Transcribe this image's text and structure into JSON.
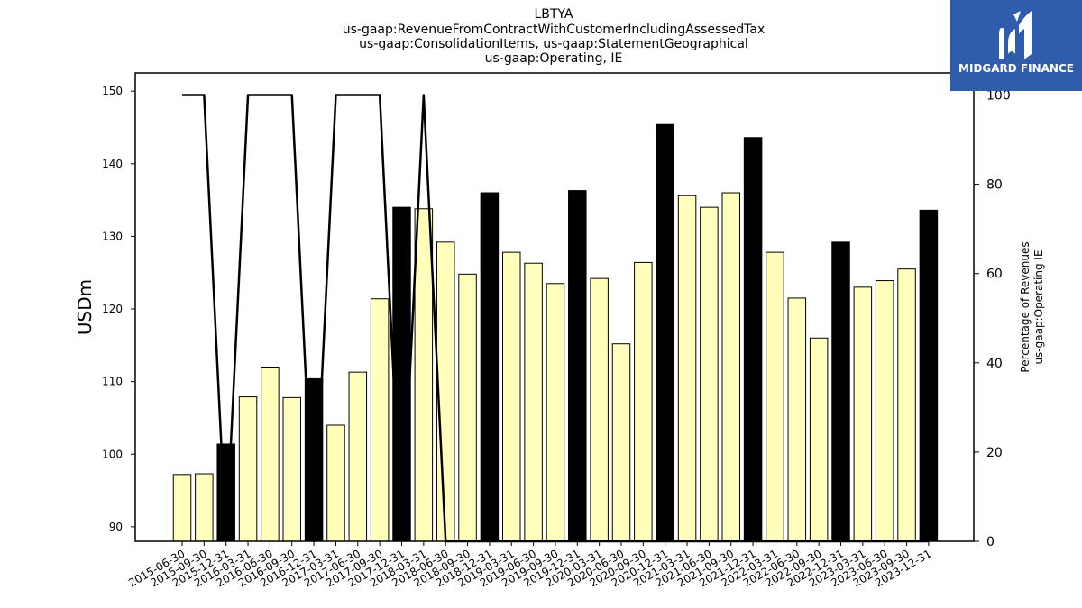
{
  "chart_data": {
    "type": "bar",
    "title_lines": [
      "LBTYA",
      "us-gaap:RevenueFromContractWithCustomerIncludingAssessedTax",
      "us-gaap:ConsolidationItems, us-gaap:StatementGeographical",
      "us-gaap:Operating, IE"
    ],
    "ylabel": "USDm",
    "y2label_lines": [
      "Percentage of Revenues",
      "us-gaap:Operating IE"
    ],
    "ylim": [
      88,
      152.5
    ],
    "y2lim": [
      0,
      100
    ],
    "yticks": [
      90,
      100,
      110,
      120,
      130,
      140,
      150
    ],
    "y2ticks": [
      0,
      20,
      40,
      60,
      80,
      100
    ],
    "categories": [
      "2015-06-30",
      "2015-09-30",
      "2015-12-31",
      "2016-03-31",
      "2016-06-30",
      "2016-09-30",
      "2016-12-31",
      "2017-03-31",
      "2017-06-30",
      "2017-09-30",
      "2017-12-31",
      "2018-03-31",
      "2018-06-30",
      "2018-09-30",
      "2018-12-31",
      "2019-03-31",
      "2019-06-30",
      "2019-09-30",
      "2019-12-31",
      "2020-03-31",
      "2020-06-30",
      "2020-09-30",
      "2020-12-31",
      "2021-03-31",
      "2021-06-30",
      "2021-09-30",
      "2021-12-31",
      "2022-03-31",
      "2022-06-30",
      "2022-09-30",
      "2022-12-31",
      "2023-03-31",
      "2023-06-30",
      "2023-09-30",
      "2023-12-31"
    ],
    "series": [
      {
        "values": [
          97.2,
          97.3,
          101.4,
          107.9,
          112.0,
          107.8,
          110.4,
          104.0,
          111.3,
          121.4,
          134.0,
          133.8,
          129.2,
          124.8,
          136.0,
          127.8,
          126.3,
          123.5,
          136.3,
          124.2,
          115.2,
          126.4,
          145.4,
          135.6,
          134.0,
          136.0,
          143.6,
          127.8,
          121.5,
          116.0,
          129.2,
          123.0,
          123.9,
          125.5,
          133.6
        ],
        "highlight": [
          false,
          false,
          true,
          false,
          false,
          false,
          true,
          false,
          false,
          false,
          true,
          false,
          false,
          false,
          true,
          false,
          false,
          false,
          true,
          false,
          false,
          false,
          true,
          false,
          false,
          false,
          true,
          false,
          false,
          false,
          true,
          false,
          false,
          false,
          true
        ]
      },
      {
        "axis": "right",
        "values": [
          100,
          100,
          0,
          100,
          100,
          100,
          0,
          100,
          100,
          100,
          0,
          100,
          0,
          0,
          0,
          0,
          0,
          0,
          0,
          0,
          0,
          0,
          0,
          0,
          0,
          0,
          0,
          0,
          0,
          0,
          0,
          0,
          0,
          0,
          0
        ]
      }
    ],
    "colors": {
      "bar": "#ffffbb",
      "bar_highlight": "#000000",
      "line": "#000000"
    }
  },
  "logo": {
    "text": "MIDGARD FINANCE",
    "background": "#2f5cab"
  }
}
